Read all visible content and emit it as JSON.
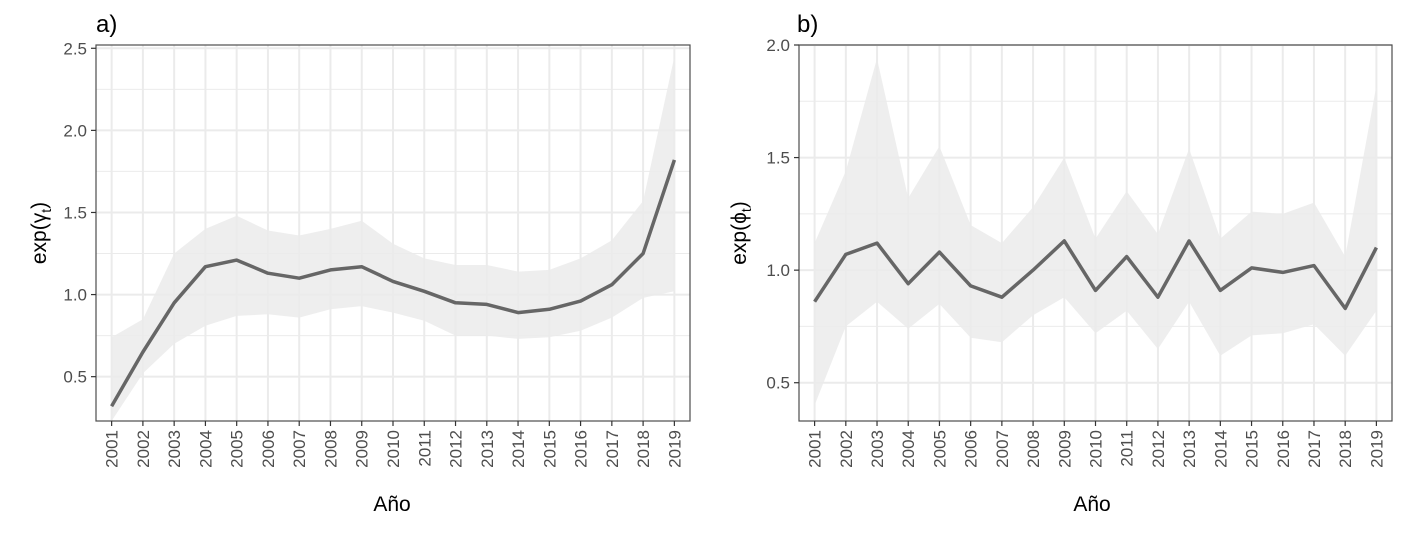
{
  "chart_data": [
    {
      "type": "line",
      "panel_label": "a)",
      "title": "",
      "xlabel": "Año",
      "ylabel_base": "exp(",
      "ylabel_symbol": "γ",
      "ylabel_subscript": "t",
      "ylabel_close": ")",
      "categories": [
        "2001",
        "2002",
        "2003",
        "2004",
        "2005",
        "2006",
        "2007",
        "2008",
        "2009",
        "2010",
        "2011",
        "2012",
        "2013",
        "2014",
        "2015",
        "2016",
        "2017",
        "2018",
        "2019"
      ],
      "ylim": [
        0.23,
        2.52
      ],
      "yticks": [
        0.5,
        1.0,
        1.5,
        2.0,
        2.5
      ],
      "ytick_labels": [
        "0.5",
        "1.0",
        "1.5",
        "2.0",
        "2.5"
      ],
      "grid": true,
      "series": [
        {
          "name": "estimate",
          "values": [
            0.32,
            0.65,
            0.95,
            1.17,
            1.21,
            1.13,
            1.1,
            1.15,
            1.17,
            1.08,
            1.02,
            0.95,
            0.94,
            0.89,
            0.91,
            0.96,
            1.06,
            1.25,
            1.82
          ],
          "lower": [
            0.23,
            0.52,
            0.7,
            0.81,
            0.87,
            0.88,
            0.86,
            0.91,
            0.93,
            0.89,
            0.84,
            0.75,
            0.75,
            0.73,
            0.74,
            0.78,
            0.86,
            0.98,
            1.02
          ],
          "upper": [
            0.74,
            0.85,
            1.25,
            1.4,
            1.48,
            1.39,
            1.36,
            1.4,
            1.45,
            1.31,
            1.22,
            1.18,
            1.18,
            1.14,
            1.15,
            1.22,
            1.33,
            1.57,
            2.45
          ]
        }
      ],
      "colors": {
        "line": "#666666",
        "band": "#ebebeb",
        "grid": "#ebebeb",
        "border": "#4d4d4d"
      }
    },
    {
      "type": "line",
      "panel_label": "b)",
      "title": "",
      "xlabel": "Año",
      "ylabel_base": "exp(",
      "ylabel_symbol": "ϕ",
      "ylabel_subscript": "t",
      "ylabel_close": ")",
      "categories": [
        "2001",
        "2002",
        "2003",
        "2004",
        "2005",
        "2006",
        "2007",
        "2008",
        "2009",
        "2010",
        "2011",
        "2012",
        "2013",
        "2014",
        "2015",
        "2016",
        "2017",
        "2018",
        "2019"
      ],
      "ylim": [
        0.33,
        2.0
      ],
      "yticks": [
        0.5,
        1.0,
        1.5,
        2.0
      ],
      "ytick_labels": [
        "0.5",
        "1.0",
        "1.5",
        "2.0"
      ],
      "grid": true,
      "series": [
        {
          "name": "estimate",
          "values": [
            0.86,
            1.07,
            1.12,
            0.94,
            1.08,
            0.93,
            0.88,
            1.0,
            1.13,
            0.91,
            1.06,
            0.88,
            1.13,
            0.91,
            1.01,
            0.99,
            1.02,
            0.83,
            1.1
          ],
          "lower": [
            0.4,
            0.75,
            0.86,
            0.74,
            0.85,
            0.7,
            0.68,
            0.8,
            0.88,
            0.72,
            0.82,
            0.65,
            0.86,
            0.62,
            0.71,
            0.72,
            0.76,
            0.62,
            0.82
          ],
          "upper": [
            1.12,
            1.44,
            1.94,
            1.32,
            1.55,
            1.2,
            1.12,
            1.28,
            1.5,
            1.14,
            1.35,
            1.16,
            1.54,
            1.14,
            1.26,
            1.25,
            1.3,
            1.06,
            1.82
          ]
        }
      ],
      "colors": {
        "line": "#666666",
        "band": "#ebebeb",
        "grid": "#ebebeb",
        "border": "#4d4d4d"
      }
    }
  ]
}
